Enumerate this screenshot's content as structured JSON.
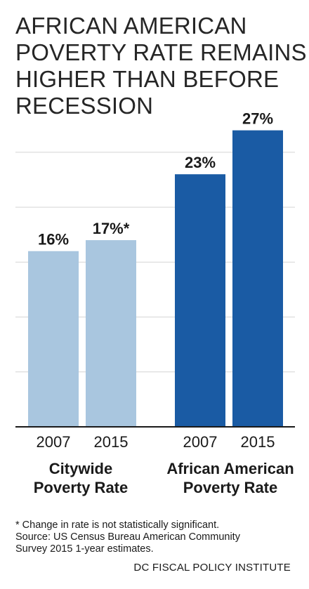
{
  "title_lines": [
    "AFRICAN AMERICAN",
    "POVERTY RATE REMAINS",
    "HIGHER THAN BEFORE",
    "RECESSION"
  ],
  "chart_data": {
    "type": "bar",
    "ylim": [
      0,
      28
    ],
    "grid": true,
    "groups": [
      {
        "label_lines": [
          "Citywide",
          "Poverty Rate"
        ],
        "color": "#a9c6df",
        "bars": [
          {
            "category": "2007",
            "value": 16,
            "label": "16%"
          },
          {
            "category": "2015",
            "value": 17,
            "label": "17%*"
          }
        ]
      },
      {
        "label_lines": [
          "African American",
          "Poverty Rate"
        ],
        "color": "#1a5ba4",
        "bars": [
          {
            "category": "2007",
            "value": 23,
            "label": "23%"
          },
          {
            "category": "2015",
            "value": 27,
            "label": "27%"
          }
        ]
      }
    ]
  },
  "footnote_lines": [
    "* Change in rate is not statistically significant.",
    "Source: US Census Bureau American Community",
    "Survey 2015 1-year estimates."
  ],
  "credit": "DC FISCAL POLICY INSTITUTE"
}
